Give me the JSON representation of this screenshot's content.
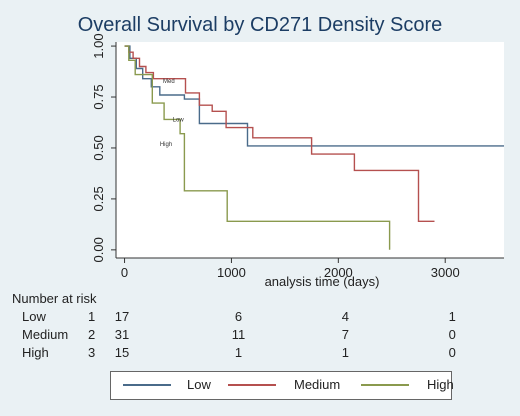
{
  "chart_data": {
    "type": "line",
    "title": "Overall Survival by CD271 Density Score",
    "xlabel": "analysis time (days)",
    "ylabel": "",
    "xlim": [
      -80,
      3550
    ],
    "ylim": [
      -0.04,
      1.02
    ],
    "x_ticks": [
      "0",
      "1000",
      "2000",
      "3000"
    ],
    "y_ticks": [
      "0.00",
      "0.25",
      "0.50",
      "0.75",
      "1.00"
    ],
    "grid": false,
    "legend_position": "bottom",
    "annotations": [
      {
        "text": "Med",
        "x": 360,
        "y": 0.82
      },
      {
        "text": "Low",
        "x": 450,
        "y": 0.63
      },
      {
        "text": "High",
        "x": 330,
        "y": 0.51
      }
    ],
    "series": [
      {
        "name": "Low",
        "color": "#4a6b8a",
        "steps": [
          [
            0,
            1
          ],
          [
            50,
            0.94
          ],
          [
            110,
            0.89
          ],
          [
            170,
            0.84
          ],
          [
            250,
            0.8
          ],
          [
            330,
            0.76
          ],
          [
            560,
            0.74
          ],
          [
            700,
            0.62
          ],
          [
            1150,
            0.51
          ],
          [
            3550,
            0.51
          ]
        ]
      },
      {
        "name": "Medium",
        "color": "#b5504f",
        "steps": [
          [
            0,
            1
          ],
          [
            40,
            0.97
          ],
          [
            80,
            0.94
          ],
          [
            140,
            0.9
          ],
          [
            200,
            0.87
          ],
          [
            270,
            0.84
          ],
          [
            570,
            0.77
          ],
          [
            700,
            0.71
          ],
          [
            820,
            0.68
          ],
          [
            950,
            0.6
          ],
          [
            1200,
            0.55
          ],
          [
            1750,
            0.47
          ],
          [
            2150,
            0.39
          ],
          [
            2750,
            0.14
          ],
          [
            2900,
            0.14
          ]
        ]
      },
      {
        "name": "High",
        "color": "#8a9a4e",
        "steps": [
          [
            0,
            1
          ],
          [
            40,
            0.93
          ],
          [
            100,
            0.86
          ],
          [
            260,
            0.72
          ],
          [
            370,
            0.64
          ],
          [
            520,
            0.57
          ],
          [
            560,
            0.29
          ],
          [
            960,
            0.14
          ],
          [
            2480,
            0.14
          ],
          [
            2480,
            0
          ]
        ]
      }
    ]
  },
  "number_at_risk": {
    "title": "Number at risk",
    "rows": [
      {
        "group": "Low",
        "code": "1",
        "counts": [
          "17",
          "6",
          "4",
          "1"
        ]
      },
      {
        "group": "Medium",
        "code": "2",
        "counts": [
          "31",
          "11",
          "7",
          "0"
        ]
      },
      {
        "group": "High",
        "code": "3",
        "counts": [
          "15",
          "1",
          "1",
          "0"
        ]
      }
    ]
  }
}
